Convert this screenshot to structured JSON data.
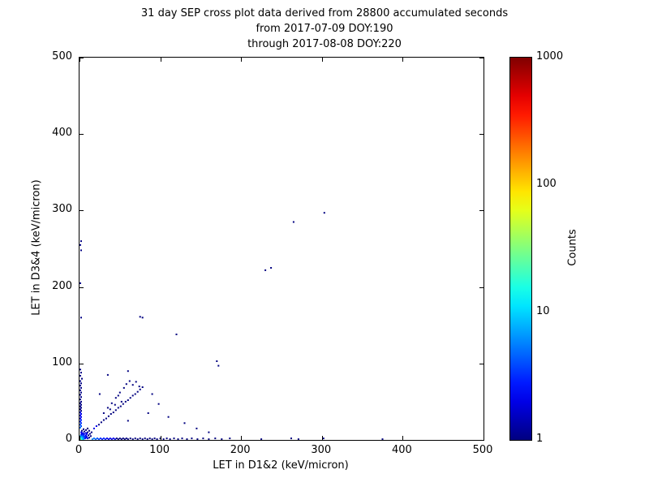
{
  "title": {
    "line1": "31 day SEP cross plot data derived from 28800 accumulated seconds",
    "line2": "from 2017-07-09 DOY:190",
    "line3": "through 2017-08-08 DOY:220"
  },
  "chart_data": {
    "type": "scatter",
    "title": "31 day SEP cross plot data derived from 28800 accumulated seconds from 2017-07-09 DOY:190 through 2017-08-08 DOY:220",
    "xlabel": "LET in D1&2 (keV/micron)",
    "ylabel": "LET in D3&4 (keV/micron)",
    "xlim": [
      0,
      500
    ],
    "ylim": [
      0,
      500
    ],
    "x_ticks": [
      0,
      100,
      200,
      300,
      400,
      500
    ],
    "y_ticks": [
      0,
      100,
      200,
      300,
      400,
      500
    ],
    "grid": false,
    "colorbar": {
      "label": "Counts",
      "scale": "log",
      "range": [
        1,
        1000
      ],
      "ticks": [
        1,
        10,
        100,
        1000
      ],
      "colormap": "jet"
    },
    "points_format": [
      "x_keV_per_micron",
      "y_keV_per_micron",
      "count"
    ],
    "points": [
      [
        1,
        1,
        60
      ],
      [
        2,
        1,
        35
      ],
      [
        1,
        2,
        30
      ],
      [
        2,
        2,
        25
      ],
      [
        3,
        1,
        20
      ],
      [
        1,
        3,
        18
      ],
      [
        3,
        2,
        15
      ],
      [
        2,
        3,
        14
      ],
      [
        4,
        1,
        12
      ],
      [
        1,
        4,
        12
      ],
      [
        3,
        3,
        10
      ],
      [
        4,
        2,
        9
      ],
      [
        2,
        4,
        9
      ],
      [
        5,
        1,
        8
      ],
      [
        1,
        5,
        8
      ],
      [
        4,
        4,
        7
      ],
      [
        5,
        3,
        6
      ],
      [
        3,
        5,
        6
      ],
      [
        6,
        2,
        5
      ],
      [
        2,
        6,
        5
      ],
      [
        5,
        5,
        4
      ],
      [
        6,
        4,
        4
      ],
      [
        4,
        6,
        4
      ],
      [
        7,
        2,
        3
      ],
      [
        2,
        7,
        3
      ],
      [
        7,
        5,
        3
      ],
      [
        5,
        7,
        3
      ],
      [
        8,
        3,
        2
      ],
      [
        3,
        8,
        2
      ],
      [
        8,
        6,
        2
      ],
      [
        6,
        8,
        2
      ],
      [
        9,
        4,
        2
      ],
      [
        4,
        9,
        2
      ],
      [
        10,
        2,
        2
      ],
      [
        2,
        10,
        2
      ],
      [
        9,
        8,
        2
      ],
      [
        8,
        9,
        2
      ],
      [
        10,
        10,
        1
      ],
      [
        11,
        6,
        1
      ],
      [
        6,
        11,
        1
      ],
      [
        12,
        3,
        1
      ],
      [
        3,
        12,
        1
      ],
      [
        13,
        8,
        1
      ],
      [
        8,
        13,
        1
      ],
      [
        14,
        5,
        1
      ],
      [
        5,
        14,
        1
      ],
      [
        15,
        10,
        1
      ],
      [
        10,
        15,
        1
      ],
      [
        12,
        12,
        1
      ],
      [
        16,
        1,
        6
      ],
      [
        18,
        2,
        5
      ],
      [
        20,
        1,
        5
      ],
      [
        22,
        2,
        4
      ],
      [
        24,
        1,
        4
      ],
      [
        26,
        2,
        3
      ],
      [
        28,
        1,
        3
      ],
      [
        30,
        2,
        3
      ],
      [
        32,
        1,
        3
      ],
      [
        34,
        2,
        2
      ],
      [
        36,
        1,
        2
      ],
      [
        38,
        2,
        2
      ],
      [
        40,
        1,
        2
      ],
      [
        42,
        2,
        2
      ],
      [
        44,
        1,
        2
      ],
      [
        46,
        2,
        1
      ],
      [
        48,
        1,
        1
      ],
      [
        50,
        2,
        1
      ],
      [
        52,
        1,
        1
      ],
      [
        54,
        2,
        1
      ],
      [
        56,
        1,
        1
      ],
      [
        58,
        2,
        1
      ],
      [
        60,
        1,
        1
      ],
      [
        63,
        2,
        1
      ],
      [
        66,
        1,
        1
      ],
      [
        69,
        2,
        1
      ],
      [
        72,
        1,
        1
      ],
      [
        75,
        2,
        1
      ],
      [
        78,
        1,
        1
      ],
      [
        81,
        2,
        1
      ],
      [
        84,
        1,
        1
      ],
      [
        87,
        2,
        1
      ],
      [
        90,
        1,
        1
      ],
      [
        93,
        2,
        1
      ],
      [
        96,
        1,
        1
      ],
      [
        100,
        2,
        1
      ],
      [
        104,
        1,
        1
      ],
      [
        108,
        2,
        1
      ],
      [
        112,
        1,
        1
      ],
      [
        117,
        2,
        1
      ],
      [
        122,
        1,
        1
      ],
      [
        127,
        2,
        1
      ],
      [
        133,
        1,
        1
      ],
      [
        139,
        2,
        1
      ],
      [
        146,
        1,
        1
      ],
      [
        153,
        2,
        1
      ],
      [
        160,
        1,
        1
      ],
      [
        168,
        2,
        1
      ],
      [
        176,
        1,
        1
      ],
      [
        186,
        2,
        1
      ],
      [
        225,
        1,
        1
      ],
      [
        262,
        2,
        1
      ],
      [
        271,
        1,
        1
      ],
      [
        302,
        2,
        1
      ],
      [
        375,
        1,
        1
      ],
      [
        1,
        16,
        5
      ],
      [
        2,
        18,
        4
      ],
      [
        1,
        20,
        4
      ],
      [
        2,
        22,
        3
      ],
      [
        1,
        24,
        3
      ],
      [
        2,
        26,
        3
      ],
      [
        1,
        28,
        2
      ],
      [
        2,
        30,
        2
      ],
      [
        1,
        32,
        2
      ],
      [
        2,
        34,
        2
      ],
      [
        1,
        36,
        2
      ],
      [
        2,
        38,
        1
      ],
      [
        1,
        40,
        1
      ],
      [
        2,
        42,
        1
      ],
      [
        1,
        44,
        1
      ],
      [
        2,
        46,
        1
      ],
      [
        1,
        48,
        1
      ],
      [
        2,
        50,
        1
      ],
      [
        1,
        53,
        1
      ],
      [
        2,
        56,
        1
      ],
      [
        1,
        59,
        1
      ],
      [
        2,
        62,
        1
      ],
      [
        1,
        65,
        1
      ],
      [
        2,
        68,
        1
      ],
      [
        1,
        71,
        1
      ],
      [
        2,
        74,
        1
      ],
      [
        1,
        77,
        1
      ],
      [
        3,
        80,
        1
      ],
      [
        1,
        84,
        1
      ],
      [
        2,
        88,
        1
      ],
      [
        1,
        92,
        1
      ],
      [
        2,
        160,
        1
      ],
      [
        1,
        205,
        1
      ],
      [
        2,
        248,
        1
      ],
      [
        1,
        255,
        1
      ],
      [
        2,
        260,
        1
      ],
      [
        18,
        15,
        2
      ],
      [
        21,
        18,
        2
      ],
      [
        24,
        20,
        1
      ],
      [
        27,
        23,
        1
      ],
      [
        30,
        26,
        1
      ],
      [
        33,
        28,
        1
      ],
      [
        36,
        31,
        1
      ],
      [
        39,
        34,
        1
      ],
      [
        42,
        36,
        1
      ],
      [
        45,
        39,
        1
      ],
      [
        48,
        42,
        1
      ],
      [
        51,
        44,
        1
      ],
      [
        54,
        47,
        1
      ],
      [
        57,
        50,
        1
      ],
      [
        60,
        52,
        1
      ],
      [
        63,
        55,
        1
      ],
      [
        66,
        58,
        1
      ],
      [
        69,
        60,
        1
      ],
      [
        72,
        63,
        1
      ],
      [
        75,
        66,
        1
      ],
      [
        78,
        69,
        1
      ],
      [
        30,
        35,
        1
      ],
      [
        35,
        42,
        1
      ],
      [
        40,
        48,
        1
      ],
      [
        45,
        55,
        1
      ],
      [
        50,
        62,
        1
      ],
      [
        55,
        68,
        1
      ],
      [
        58,
        73,
        1
      ],
      [
        62,
        77,
        1
      ],
      [
        66,
        72,
        1
      ],
      [
        70,
        76,
        1
      ],
      [
        74,
        70,
        1
      ],
      [
        48,
        58,
        1
      ],
      [
        52,
        50,
        1
      ],
      [
        44,
        46,
        1
      ],
      [
        38,
        40,
        1
      ],
      [
        75,
        161,
        1
      ],
      [
        78,
        160,
        1
      ],
      [
        120,
        138,
        1
      ],
      [
        170,
        103,
        1
      ],
      [
        230,
        222,
        1
      ],
      [
        237,
        225,
        1
      ],
      [
        265,
        285,
        1
      ],
      [
        303,
        297,
        1
      ],
      [
        98,
        47,
        1
      ],
      [
        110,
        30,
        1
      ],
      [
        130,
        22,
        1
      ],
      [
        145,
        15,
        1
      ],
      [
        160,
        10,
        1
      ],
      [
        172,
        97,
        1
      ],
      [
        60,
        90,
        1
      ],
      [
        90,
        60,
        1
      ],
      [
        85,
        35,
        1
      ],
      [
        35,
        85,
        1
      ],
      [
        25,
        60,
        1
      ],
      [
        60,
        25,
        1
      ]
    ]
  }
}
